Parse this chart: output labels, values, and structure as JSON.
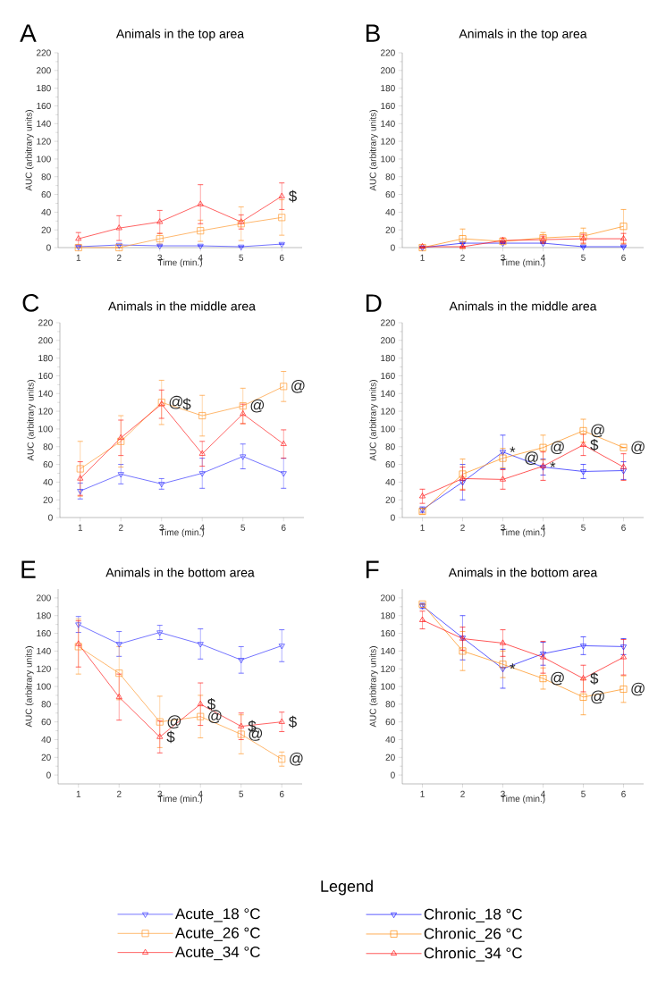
{
  "chart_data": [
    {
      "type": "line",
      "title": "Animals in the top area",
      "xlabel": "Time (min.)",
      "ylabel": "AUC (arbitrary units)",
      "x": [
        1,
        2,
        3,
        4,
        5,
        6
      ],
      "xlim": [
        0.5,
        6.5
      ],
      "xticks": [
        1,
        2,
        3,
        4,
        5,
        6
      ],
      "ylim": [
        0,
        220
      ],
      "yticks": [
        0,
        20,
        40,
        60,
        80,
        100,
        120,
        140,
        160,
        180,
        200,
        220
      ],
      "legend": "bottom",
      "legend_title": "Legend",
      "annotations": [
        "A",
        {
          "text": "$",
          "x": 6,
          "y": 58
        }
      ],
      "series": [
        {
          "name": "Acute_18 °C",
          "color": "#3a3aff",
          "marker": "triangle down",
          "values": [
            1,
            3,
            2,
            2,
            1,
            4
          ],
          "errors": [
            null,
            null,
            null,
            null,
            null,
            null
          ]
        },
        {
          "name": "Acute_26 °C",
          "color": "#ff9a30",
          "marker": "square",
          "values": [
            0,
            0,
            10,
            19,
            27,
            34
          ],
          "errors": [
            null,
            null,
            6,
            12,
            19,
            20
          ]
        },
        {
          "name": "Acute_34 °C",
          "color": "#ff2020",
          "marker": "triangle",
          "values": [
            10,
            22,
            29,
            49,
            29,
            58
          ],
          "errors": [
            7,
            14,
            13,
            22,
            8,
            15
          ]
        }
      ]
    },
    {
      "type": "line",
      "title": "Animals in the top area",
      "xlabel": "Time (min.)",
      "ylabel": "AUC (arbitrary units)",
      "x": [
        1,
        2,
        3,
        4,
        5,
        6
      ],
      "xlim": [
        0.5,
        6.5
      ],
      "xticks": [
        1,
        2,
        3,
        4,
        5,
        6
      ],
      "ylim": [
        0,
        220
      ],
      "yticks": [
        0,
        20,
        40,
        60,
        80,
        100,
        120,
        140,
        160,
        180,
        200,
        220
      ],
      "legend": "bottom",
      "annotations": [
        "B"
      ],
      "series": [
        {
          "name": "Chronic_18 °C",
          "color": "#1515ff",
          "marker": "triangle down",
          "values": [
            0,
            5,
            5,
            5,
            1,
            1
          ],
          "errors": [
            null,
            null,
            null,
            null,
            null,
            null
          ]
        },
        {
          "name": "Chronic_26 °C",
          "color": "#ff8c10",
          "marker": "square",
          "values": [
            0,
            10,
            7,
            11,
            13,
            24
          ],
          "errors": [
            null,
            11,
            null,
            6,
            9,
            19
          ]
        },
        {
          "name": "Chronic_34 °C",
          "color": "#ff1010",
          "marker": "triangle",
          "values": [
            1,
            1,
            8,
            9,
            10,
            10
          ],
          "errors": [
            null,
            null,
            3,
            4,
            5,
            6
          ]
        }
      ]
    },
    {
      "type": "line",
      "title": "Animals in the middle area",
      "xlabel": "Time (min.)",
      "ylabel": "AUC (arbitrary units)",
      "x": [
        1,
        2,
        3,
        4,
        5,
        6
      ],
      "xlim": [
        0.5,
        6.5
      ],
      "xticks": [
        1,
        2,
        3,
        4,
        5,
        6
      ],
      "ylim": [
        0,
        220
      ],
      "yticks": [
        0,
        20,
        40,
        60,
        80,
        100,
        120,
        140,
        160,
        180,
        200,
        220
      ],
      "annotations": [
        "C",
        {
          "text": "@",
          "x": 3,
          "y": 130
        },
        {
          "text": "$",
          "x": 3,
          "y": 128
        },
        {
          "text": "@",
          "x": 5,
          "y": 126
        },
        {
          "text": "@",
          "x": 6,
          "y": 148
        }
      ],
      "series": [
        {
          "color": "#3a3aff",
          "marker": "triangle down",
          "values": [
            30,
            49,
            38,
            50,
            69,
            50
          ],
          "errors": [
            9,
            11,
            6,
            17,
            14,
            17
          ]
        },
        {
          "color": "#ff9a30",
          "marker": "square",
          "values": [
            55,
            86,
            130,
            115,
            126,
            148
          ],
          "errors": [
            31,
            29,
            25,
            23,
            20,
            17
          ]
        },
        {
          "color": "#ff2020",
          "marker": "triangle",
          "values": [
            44,
            90,
            128,
            72,
            117,
            83
          ],
          "errors": [
            19,
            20,
            16,
            14,
            11,
            16
          ]
        }
      ]
    },
    {
      "type": "line",
      "title": "Animals in the middle area",
      "xlabel": "Time (min.)",
      "ylabel": "AUC (arbitrary units)",
      "x": [
        1,
        2,
        3,
        4,
        5,
        6
      ],
      "xlim": [
        0.5,
        6.5
      ],
      "xticks": [
        1,
        2,
        3,
        4,
        5,
        6
      ],
      "ylim": [
        0,
        220
      ],
      "yticks": [
        0,
        20,
        40,
        60,
        80,
        100,
        120,
        140,
        160,
        180,
        200,
        220
      ],
      "annotations": [
        "D",
        {
          "text": "*",
          "x": 3,
          "y": 74
        },
        {
          "text": "*",
          "x": 4,
          "y": 57
        },
        {
          "text": "@",
          "x": 3,
          "y": 67
        },
        {
          "text": "@",
          "x": 4,
          "y": 79
        },
        {
          "text": "@",
          "x": 5,
          "y": 98
        },
        {
          "text": "$",
          "x": 5,
          "y": 82
        },
        {
          "text": "@",
          "x": 6,
          "y": 79
        }
      ],
      "series": [
        {
          "color": "#1515ff",
          "marker": "triangle down",
          "values": [
            9,
            40,
            74,
            57,
            52,
            53
          ],
          "errors": [
            3,
            20,
            19,
            9,
            8,
            10
          ]
        },
        {
          "color": "#ff8c10",
          "marker": "square",
          "values": [
            7,
            49,
            67,
            79,
            98,
            79
          ],
          "errors": [
            3,
            17,
            11,
            14,
            13,
            null
          ]
        },
        {
          "color": "#ff1010",
          "marker": "triangle",
          "values": [
            24,
            44,
            43,
            58,
            82,
            57
          ],
          "errors": [
            8,
            13,
            11,
            16,
            12,
            15
          ]
        }
      ]
    },
    {
      "type": "line",
      "title": "Animals in the bottom area",
      "xlabel": "Time (min.)",
      "ylabel": "AUC (arbitrary units)",
      "x": [
        1,
        2,
        3,
        4,
        5,
        6
      ],
      "xlim": [
        0.5,
        6.5
      ],
      "xticks": [
        1,
        2,
        3,
        4,
        5,
        6
      ],
      "ylim": [
        -10,
        210
      ],
      "yticks": [
        0,
        20,
        40,
        60,
        80,
        100,
        120,
        140,
        160,
        180,
        200
      ],
      "annotations": [
        "E",
        {
          "text": "@",
          "x": 3,
          "y": 60
        },
        {
          "text": "$",
          "x": 3,
          "y": 43
        },
        {
          "text": "$",
          "x": 4,
          "y": 80
        },
        {
          "text": "@",
          "x": 4,
          "y": 66
        },
        {
          "text": "$",
          "x": 5,
          "y": 55
        },
        {
          "text": "@",
          "x": 5,
          "y": 46
        },
        {
          "text": "$",
          "x": 6,
          "y": 60
        },
        {
          "text": "@",
          "x": 6,
          "y": 18
        }
      ],
      "series": [
        {
          "color": "#3a3aff",
          "marker": "triangle down",
          "values": [
            170,
            148,
            161,
            148,
            130,
            146
          ],
          "errors": [
            9,
            14,
            8,
            17,
            15,
            18
          ]
        },
        {
          "color": "#ff9a30",
          "marker": "square",
          "values": [
            145,
            115,
            60,
            66,
            46,
            18
          ],
          "errors": [
            31,
            30,
            29,
            24,
            22,
            8
          ]
        },
        {
          "color": "#ff2020",
          "marker": "triangle",
          "values": [
            148,
            88,
            43,
            80,
            55,
            60
          ],
          "errors": [
            26,
            26,
            18,
            24,
            15,
            11
          ]
        }
      ]
    },
    {
      "type": "line",
      "title": "Animals in the bottom area",
      "xlabel": "Time (min.)",
      "ylabel": "AUC (arbitrary units)",
      "x": [
        1,
        2,
        3,
        4,
        5,
        6
      ],
      "xlim": [
        0.5,
        6.5
      ],
      "xticks": [
        1,
        2,
        3,
        4,
        5,
        6
      ],
      "ylim": [
        -10,
        210
      ],
      "yticks": [
        0,
        20,
        40,
        60,
        80,
        100,
        120,
        140,
        160,
        180,
        200
      ],
      "annotations": [
        "F",
        {
          "text": "*",
          "x": 3,
          "y": 120
        },
        {
          "text": "$",
          "x": 5,
          "y": 109
        },
        {
          "text": "@",
          "x": 4,
          "y": 109
        },
        {
          "text": "@",
          "x": 5,
          "y": 88
        },
        {
          "text": "@",
          "x": 6,
          "y": 97
        }
      ],
      "series": [
        {
          "color": "#1515ff",
          "marker": "triangle down",
          "values": [
            191,
            155,
            120,
            137,
            146,
            145
          ],
          "errors": [
            3,
            25,
            22,
            13,
            10,
            9
          ]
        },
        {
          "color": "#ff8c10",
          "marker": "square",
          "values": [
            193,
            140,
            125,
            109,
            88,
            97
          ],
          "errors": [
            null,
            22,
            15,
            12,
            20,
            15
          ]
        },
        {
          "color": "#ff1010",
          "marker": "triangle",
          "values": [
            175,
            154,
            149,
            133,
            109,
            133
          ],
          "errors": [
            10,
            13,
            15,
            18,
            15,
            20
          ]
        }
      ]
    }
  ]
}
